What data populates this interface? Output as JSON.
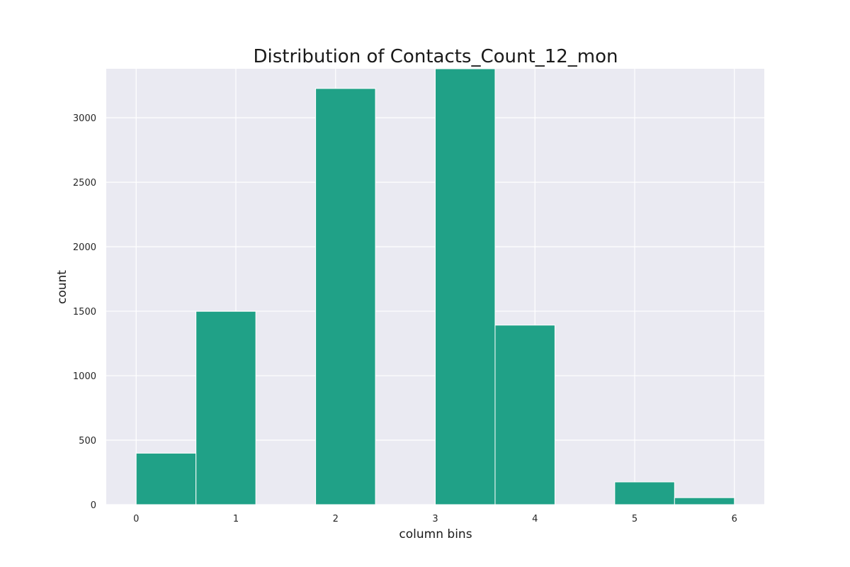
{
  "chart_data": {
    "type": "bar",
    "title": "Distribution of Contacts_Count_12_mon",
    "xlabel": "column bins",
    "ylabel": "count",
    "xlim": [
      -0.3,
      6.3
    ],
    "ylim": [
      0,
      3380
    ],
    "xticks": [
      0,
      1,
      2,
      3,
      4,
      5,
      6
    ],
    "yticks": [
      0,
      500,
      1000,
      1500,
      2000,
      2500,
      3000
    ],
    "grid": true,
    "bins": [
      {
        "x0": 0.0,
        "x1": 0.6,
        "count": 399
      },
      {
        "x0": 0.6,
        "x1": 1.2,
        "count": 1499
      },
      {
        "x0": 1.2,
        "x1": 1.8,
        "count": 0
      },
      {
        "x0": 1.8,
        "x1": 2.4,
        "count": 3227
      },
      {
        "x0": 2.4,
        "x1": 3.0,
        "count": 0
      },
      {
        "x0": 3.0,
        "x1": 3.6,
        "count": 3380
      },
      {
        "x0": 3.6,
        "x1": 4.2,
        "count": 1392
      },
      {
        "x0": 4.2,
        "x1": 4.8,
        "count": 0
      },
      {
        "x0": 4.8,
        "x1": 5.4,
        "count": 176
      },
      {
        "x0": 5.4,
        "x1": 6.0,
        "count": 54
      }
    ],
    "colors": {
      "bar": "#20a187",
      "background": "#eaeaf2",
      "grid": "#ffffff"
    }
  }
}
